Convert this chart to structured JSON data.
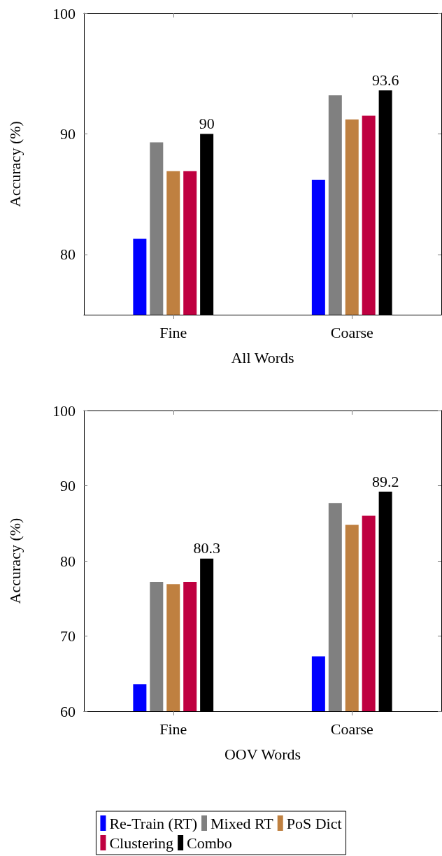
{
  "chart_data": [
    {
      "type": "bar",
      "xlabel": "All Words",
      "ylabel": "Accuracy (%)",
      "categories": [
        "Fine",
        "Coarse"
      ],
      "ylim": [
        75,
        100
      ],
      "yticks": [
        80,
        90,
        100
      ],
      "legend": false,
      "series": [
        {
          "color": "#0000ff",
          "values": [
            81.3,
            86.2
          ]
        },
        {
          "color": "#808080",
          "values": [
            89.3,
            93.2
          ]
        },
        {
          "color": "#bf8040",
          "values": [
            86.9,
            91.2
          ]
        },
        {
          "color": "#bf0040",
          "values": [
            86.9,
            91.5
          ]
        },
        {
          "color": "#000000",
          "values": [
            90,
            93.6
          ],
          "value_labels": [
            "90",
            "93.6"
          ]
        }
      ]
    },
    {
      "type": "bar",
      "xlabel": "OOV Words",
      "ylabel": "Accuracy (%)",
      "categories": [
        "Fine",
        "Coarse"
      ],
      "ylim": [
        60,
        100
      ],
      "yticks": [
        60,
        70,
        80,
        90,
        100
      ],
      "legend": "bottom",
      "series": [
        {
          "name": "Re-Train (RT)",
          "color": "#0000ff",
          "values": [
            63.6,
            67.3
          ]
        },
        {
          "name": "Mixed RT",
          "color": "#808080",
          "values": [
            77.2,
            87.7
          ]
        },
        {
          "name": "PoS Dict",
          "color": "#bf8040",
          "values": [
            76.9,
            84.8
          ]
        },
        {
          "name": "Clustering",
          "color": "#bf0040",
          "values": [
            77.2,
            86.0
          ]
        },
        {
          "name": "Combo",
          "color": "#000000",
          "values": [
            80.3,
            89.2
          ],
          "value_labels": [
            "80.3",
            "89.2"
          ]
        }
      ]
    }
  ]
}
